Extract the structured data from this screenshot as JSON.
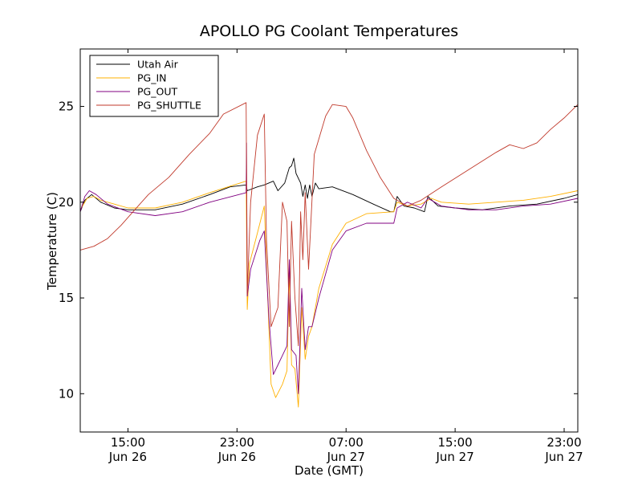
{
  "chart_data": {
    "type": "line",
    "title": "APOLLO PG Coolant Temperatures",
    "xlabel": "Date (GMT)",
    "ylabel": "Temperature (C)",
    "xlim": [
      "2014-06-26 11:30",
      "2014-06-28 00:00"
    ],
    "ylim": [
      8,
      28
    ],
    "x_ticks": [
      {
        "x": "2014-06-26 15:00",
        "time": "15:00",
        "date": "Jun 26"
      },
      {
        "x": "2014-06-26 23:00",
        "time": "23:00",
        "date": "Jun 26"
      },
      {
        "x": "2014-06-27 07:00",
        "time": "07:00",
        "date": "Jun 27"
      },
      {
        "x": "2014-06-27 15:00",
        "time": "15:00",
        "date": "Jun 27"
      },
      {
        "x": "2014-06-27 23:00",
        "time": "23:00",
        "date": "Jun 27"
      }
    ],
    "y_ticks": [
      10,
      15,
      20,
      25
    ],
    "grid": false,
    "legend_position": "top-left",
    "series": [
      {
        "name": "Utah Air",
        "color": "#000000",
        "points": [
          [
            "2014-06-26 11:30",
            19.5
          ],
          [
            "2014-06-26 11:50",
            20.1
          ],
          [
            "2014-06-26 12:20",
            20.4
          ],
          [
            "2014-06-26 13:00",
            20.0
          ],
          [
            "2014-06-26 14:00",
            19.7
          ],
          [
            "2014-06-26 15:00",
            19.6
          ],
          [
            "2014-06-26 17:00",
            19.6
          ],
          [
            "2014-06-26 19:00",
            19.9
          ],
          [
            "2014-06-26 21:00",
            20.4
          ],
          [
            "2014-06-26 22:30",
            20.8
          ],
          [
            "2014-06-26 23:40",
            20.9
          ],
          [
            "2014-06-26 23:45",
            20.6
          ],
          [
            "2014-06-27 00:30",
            20.8
          ],
          [
            "2014-06-27 01:00",
            20.9
          ],
          [
            "2014-06-27 01:40",
            21.1
          ],
          [
            "2014-06-27 02:00",
            20.6
          ],
          [
            "2014-06-27 02:30",
            21.0
          ],
          [
            "2014-06-27 02:50",
            21.8
          ],
          [
            "2014-06-27 03:00",
            21.9
          ],
          [
            "2014-06-27 03:10",
            22.3
          ],
          [
            "2014-06-27 03:20",
            21.5
          ],
          [
            "2014-06-27 03:40",
            21.0
          ],
          [
            "2014-06-27 03:50",
            20.3
          ],
          [
            "2014-06-27 04:00",
            20.9
          ],
          [
            "2014-06-27 04:10",
            20.2
          ],
          [
            "2014-06-27 04:20",
            20.9
          ],
          [
            "2014-06-27 04:30",
            20.3
          ],
          [
            "2014-06-27 04:45",
            21.0
          ],
          [
            "2014-06-27 05:00",
            20.7
          ],
          [
            "2014-06-27 06:00",
            20.8
          ],
          [
            "2014-06-27 07:30",
            20.4
          ],
          [
            "2014-06-27 09:00",
            19.9
          ],
          [
            "2014-06-27 10:15",
            19.5
          ],
          [
            "2014-06-27 10:30",
            19.5
          ],
          [
            "2014-06-27 10:45",
            20.3
          ],
          [
            "2014-06-27 11:15",
            19.8
          ],
          [
            "2014-06-27 12:00",
            19.7
          ],
          [
            "2014-06-27 12:45",
            19.5
          ],
          [
            "2014-06-27 13:00",
            20.3
          ],
          [
            "2014-06-27 13:45",
            19.8
          ],
          [
            "2014-06-27 15:00",
            19.7
          ],
          [
            "2014-06-27 17:00",
            19.6
          ],
          [
            "2014-06-27 19:00",
            19.8
          ],
          [
            "2014-06-27 21:00",
            19.9
          ],
          [
            "2014-06-27 23:00",
            20.2
          ],
          [
            "2014-06-28 00:00",
            20.4
          ]
        ]
      },
      {
        "name": "PG_IN",
        "color": "#ffb000",
        "points": [
          [
            "2014-06-26 11:30",
            19.6
          ],
          [
            "2014-06-26 12:00",
            20.2
          ],
          [
            "2014-06-26 12:30",
            20.3
          ],
          [
            "2014-06-26 13:00",
            20.1
          ],
          [
            "2014-06-26 14:00",
            19.9
          ],
          [
            "2014-06-26 15:00",
            19.7
          ],
          [
            "2014-06-26 17:00",
            19.7
          ],
          [
            "2014-06-26 19:00",
            20.0
          ],
          [
            "2014-06-26 21:00",
            20.5
          ],
          [
            "2014-06-26 23:40",
            21.1
          ],
          [
            "2014-06-26 23:45",
            14.4
          ],
          [
            "2014-06-26 23:55",
            16.8
          ],
          [
            "2014-06-27 00:30",
            18.4
          ],
          [
            "2014-06-27 01:00",
            19.8
          ],
          [
            "2014-06-27 01:20",
            13.5
          ],
          [
            "2014-06-27 01:30",
            10.5
          ],
          [
            "2014-06-27 01:50",
            9.8
          ],
          [
            "2014-06-27 02:20",
            10.5
          ],
          [
            "2014-06-27 02:40",
            11.2
          ],
          [
            "2014-06-27 02:50",
            16.5
          ],
          [
            "2014-06-27 03:00",
            11.5
          ],
          [
            "2014-06-27 03:15",
            11.3
          ],
          [
            "2014-06-27 03:30",
            9.3
          ],
          [
            "2014-06-27 03:45",
            14.5
          ],
          [
            "2014-06-27 04:00",
            11.8
          ],
          [
            "2014-06-27 04:15",
            13.0
          ],
          [
            "2014-06-27 04:30",
            13.5
          ],
          [
            "2014-06-27 05:00",
            15.5
          ],
          [
            "2014-06-27 06:00",
            17.8
          ],
          [
            "2014-06-27 07:00",
            18.9
          ],
          [
            "2014-06-27 08:30",
            19.4
          ],
          [
            "2014-06-27 10:30",
            19.5
          ],
          [
            "2014-06-27 10:45",
            20.0
          ],
          [
            "2014-06-27 11:30",
            19.8
          ],
          [
            "2014-06-27 12:30",
            19.9
          ],
          [
            "2014-06-27 13:15",
            20.2
          ],
          [
            "2014-06-27 14:00",
            20.0
          ],
          [
            "2014-06-27 16:00",
            19.9
          ],
          [
            "2014-06-27 18:00",
            20.0
          ],
          [
            "2014-06-27 20:00",
            20.1
          ],
          [
            "2014-06-27 22:00",
            20.3
          ],
          [
            "2014-06-28 00:00",
            20.6
          ]
        ]
      },
      {
        "name": "PG_OUT",
        "color": "#800080",
        "points": [
          [
            "2014-06-26 11:30",
            19.5
          ],
          [
            "2014-06-26 11:50",
            20.3
          ],
          [
            "2014-06-26 12:10",
            20.6
          ],
          [
            "2014-06-26 12:40",
            20.4
          ],
          [
            "2014-06-26 13:30",
            19.9
          ],
          [
            "2014-06-26 15:00",
            19.5
          ],
          [
            "2014-06-26 17:00",
            19.3
          ],
          [
            "2014-06-26 19:00",
            19.5
          ],
          [
            "2014-06-26 21:00",
            20.0
          ],
          [
            "2014-06-26 23:40",
            20.5
          ],
          [
            "2014-06-26 23:42",
            23.1
          ],
          [
            "2014-06-26 23:45",
            15.1
          ],
          [
            "2014-06-27 00:00",
            16.5
          ],
          [
            "2014-06-27 00:40",
            18.0
          ],
          [
            "2014-06-27 01:00",
            18.5
          ],
          [
            "2014-06-27 01:20",
            14.0
          ],
          [
            "2014-06-27 01:40",
            11.0
          ],
          [
            "2014-06-27 02:00",
            11.5
          ],
          [
            "2014-06-27 02:20",
            12.0
          ],
          [
            "2014-06-27 02:40",
            12.5
          ],
          [
            "2014-06-27 02:50",
            17.0
          ],
          [
            "2014-06-27 03:00",
            12.3
          ],
          [
            "2014-06-27 03:20",
            12.0
          ],
          [
            "2014-06-27 03:30",
            10.0
          ],
          [
            "2014-06-27 03:45",
            15.5
          ],
          [
            "2014-06-27 04:00",
            12.3
          ],
          [
            "2014-06-27 04:15",
            13.5
          ],
          [
            "2014-06-27 04:30",
            13.5
          ],
          [
            "2014-06-27 05:00",
            15.0
          ],
          [
            "2014-06-27 06:00",
            17.5
          ],
          [
            "2014-06-27 07:00",
            18.5
          ],
          [
            "2014-06-27 08:30",
            18.9
          ],
          [
            "2014-06-27 10:30",
            18.9
          ],
          [
            "2014-06-27 10:45",
            19.7
          ],
          [
            "2014-06-27 11:30",
            20.0
          ],
          [
            "2014-06-27 12:30",
            19.7
          ],
          [
            "2014-06-27 13:00",
            20.2
          ],
          [
            "2014-06-27 14:00",
            19.8
          ],
          [
            "2014-06-27 16:00",
            19.6
          ],
          [
            "2014-06-27 18:00",
            19.6
          ],
          [
            "2014-06-27 20:00",
            19.8
          ],
          [
            "2014-06-27 22:00",
            19.9
          ],
          [
            "2014-06-28 00:00",
            20.2
          ]
        ]
      },
      {
        "name": "PG_SHUTTLE",
        "color": "#c0392b",
        "points": [
          [
            "2014-06-26 11:30",
            17.5
          ],
          [
            "2014-06-26 12:30",
            17.7
          ],
          [
            "2014-06-26 13:30",
            18.1
          ],
          [
            "2014-06-26 14:30",
            18.8
          ],
          [
            "2014-06-26 15:30",
            19.6
          ],
          [
            "2014-06-26 16:30",
            20.4
          ],
          [
            "2014-06-26 18:00",
            21.3
          ],
          [
            "2014-06-26 19:30",
            22.5
          ],
          [
            "2014-06-26 21:00",
            23.6
          ],
          [
            "2014-06-26 22:00",
            24.6
          ],
          [
            "2014-06-26 23:40",
            25.2
          ],
          [
            "2014-06-26 23:45",
            15.2
          ],
          [
            "2014-06-27 00:00",
            20.0
          ],
          [
            "2014-06-27 00:30",
            23.5
          ],
          [
            "2014-06-27 01:00",
            24.6
          ],
          [
            "2014-06-27 01:10",
            18.0
          ],
          [
            "2014-06-27 01:30",
            13.5
          ],
          [
            "2014-06-27 02:00",
            14.5
          ],
          [
            "2014-06-27 02:20",
            20.0
          ],
          [
            "2014-06-27 02:40",
            19.0
          ],
          [
            "2014-06-27 02:50",
            13.5
          ],
          [
            "2014-06-27 03:00",
            19.0
          ],
          [
            "2014-06-27 03:15",
            15.0
          ],
          [
            "2014-06-27 03:30",
            12.5
          ],
          [
            "2014-06-27 03:40",
            19.5
          ],
          [
            "2014-06-27 03:50",
            17.0
          ],
          [
            "2014-06-27 04:00",
            20.5
          ],
          [
            "2014-06-27 04:15",
            16.5
          ],
          [
            "2014-06-27 04:40",
            22.5
          ],
          [
            "2014-06-27 05:30",
            24.5
          ],
          [
            "2014-06-27 06:00",
            25.1
          ],
          [
            "2014-06-27 07:00",
            25.0
          ],
          [
            "2014-06-27 07:30",
            24.4
          ],
          [
            "2014-06-27 08:30",
            22.7
          ],
          [
            "2014-06-27 09:30",
            21.3
          ],
          [
            "2014-06-27 10:30",
            20.2
          ],
          [
            "2014-06-27 11:30",
            19.8
          ],
          [
            "2014-06-27 12:30",
            20.1
          ],
          [
            "2014-06-27 14:00",
            20.8
          ],
          [
            "2014-06-27 16:00",
            21.7
          ],
          [
            "2014-06-27 18:00",
            22.6
          ],
          [
            "2014-06-27 19:00",
            23.0
          ],
          [
            "2014-06-27 20:00",
            22.8
          ],
          [
            "2014-06-27 21:00",
            23.1
          ],
          [
            "2014-06-27 22:00",
            23.8
          ],
          [
            "2014-06-27 23:00",
            24.4
          ],
          [
            "2014-06-28 00:00",
            25.1
          ]
        ]
      }
    ]
  }
}
